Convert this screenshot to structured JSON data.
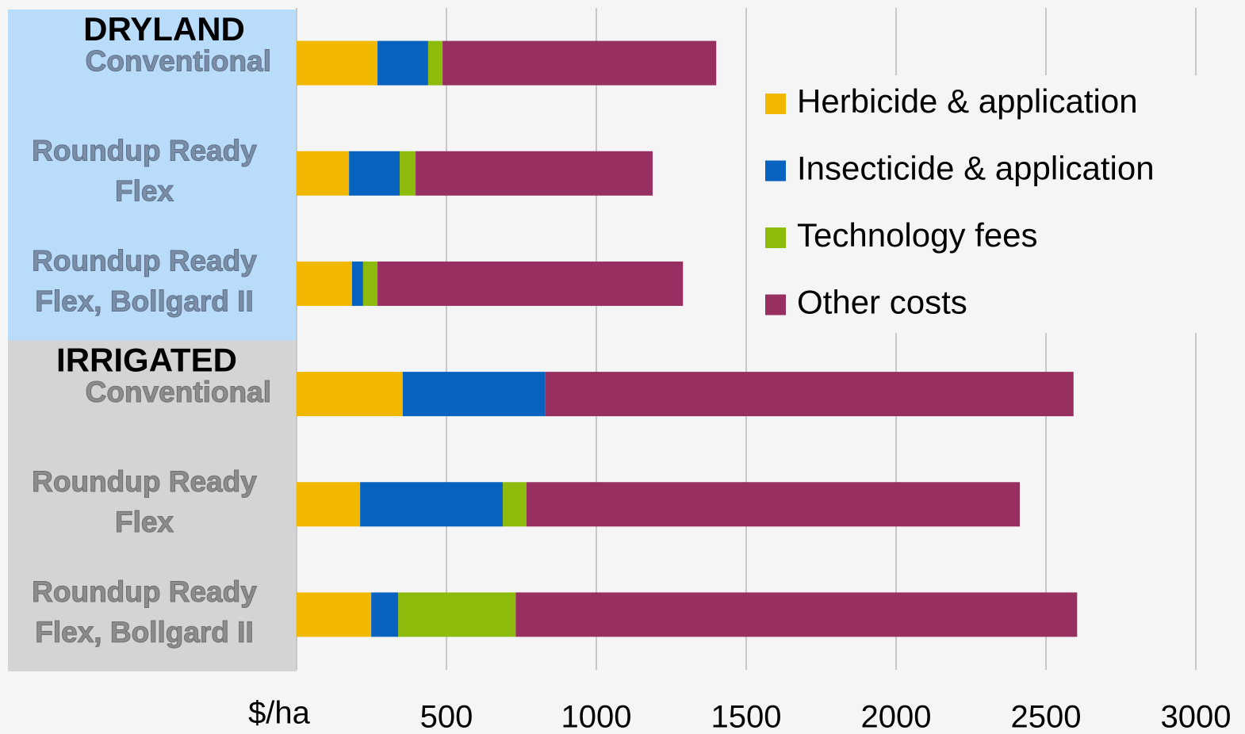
{
  "chart_data": {
    "type": "stacked-bar-horizontal",
    "x_axis_label": "$/ha",
    "groups": [
      {
        "label": "DRYLAND",
        "color": "#b9dcfb",
        "categories": [
          0,
          1,
          2
        ]
      },
      {
        "label": "IRRIGATED",
        "color": "#d4d4d4",
        "categories": [
          3,
          4,
          5
        ]
      }
    ],
    "categories": [
      [
        "Conventional"
      ],
      [
        "Roundup Ready",
        "Flex"
      ],
      [
        "Roundup Ready",
        "Flex, Bollgard II"
      ],
      [
        "Conventional"
      ],
      [
        "Roundup Ready",
        "Flex"
      ],
      [
        "Roundup Ready",
        "Flex, Bollgard II"
      ]
    ],
    "series": [
      {
        "name": "Herbicide & application",
        "color": "#f2b800",
        "values": [
          270,
          175,
          185,
          354,
          212,
          249
        ]
      },
      {
        "name": "Insecticide & application",
        "color": "#0862c0",
        "values": [
          169,
          169,
          37,
          476,
          476,
          90
        ]
      },
      {
        "name": "Technology fees",
        "color": "#8dbb0c",
        "values": [
          48,
          53,
          48,
          0,
          79,
          392
        ]
      },
      {
        "name": "Other costs",
        "color": "#973060",
        "values": [
          913,
          791,
          1019,
          1762,
          1646,
          1873
        ]
      }
    ],
    "xlim": [
      0,
      3000
    ],
    "xticks": [
      500,
      1000,
      1500,
      2000,
      2500,
      3000
    ],
    "grid": true,
    "legend": "upper right"
  }
}
